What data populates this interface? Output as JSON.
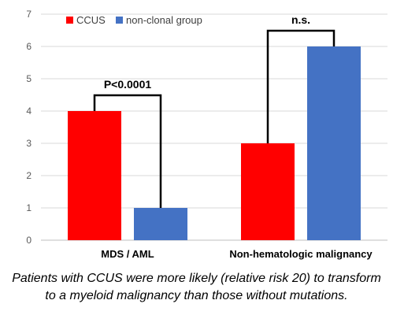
{
  "chart_data": {
    "type": "bar",
    "categories": [
      "MDS / AML",
      "Non-hematologic malignancy"
    ],
    "series": [
      {
        "name": "CCUS",
        "values": [
          4,
          3
        ],
        "color": "#ff0000"
      },
      {
        "name": "non-clonal group",
        "values": [
          1,
          6
        ],
        "color": "#4472c4"
      }
    ],
    "ylim": [
      0,
      7
    ],
    "yticks": [
      0,
      1,
      2,
      3,
      4,
      5,
      6,
      7
    ],
    "grid": true,
    "legend_position": "top-left",
    "annotations": [
      "P<0.0001",
      "n.s."
    ]
  },
  "caption": {
    "line1": "Patients with CCUS were more likely (relative risk 20) to transform",
    "line2": "to a myeloid malignancy than those without mutations."
  }
}
